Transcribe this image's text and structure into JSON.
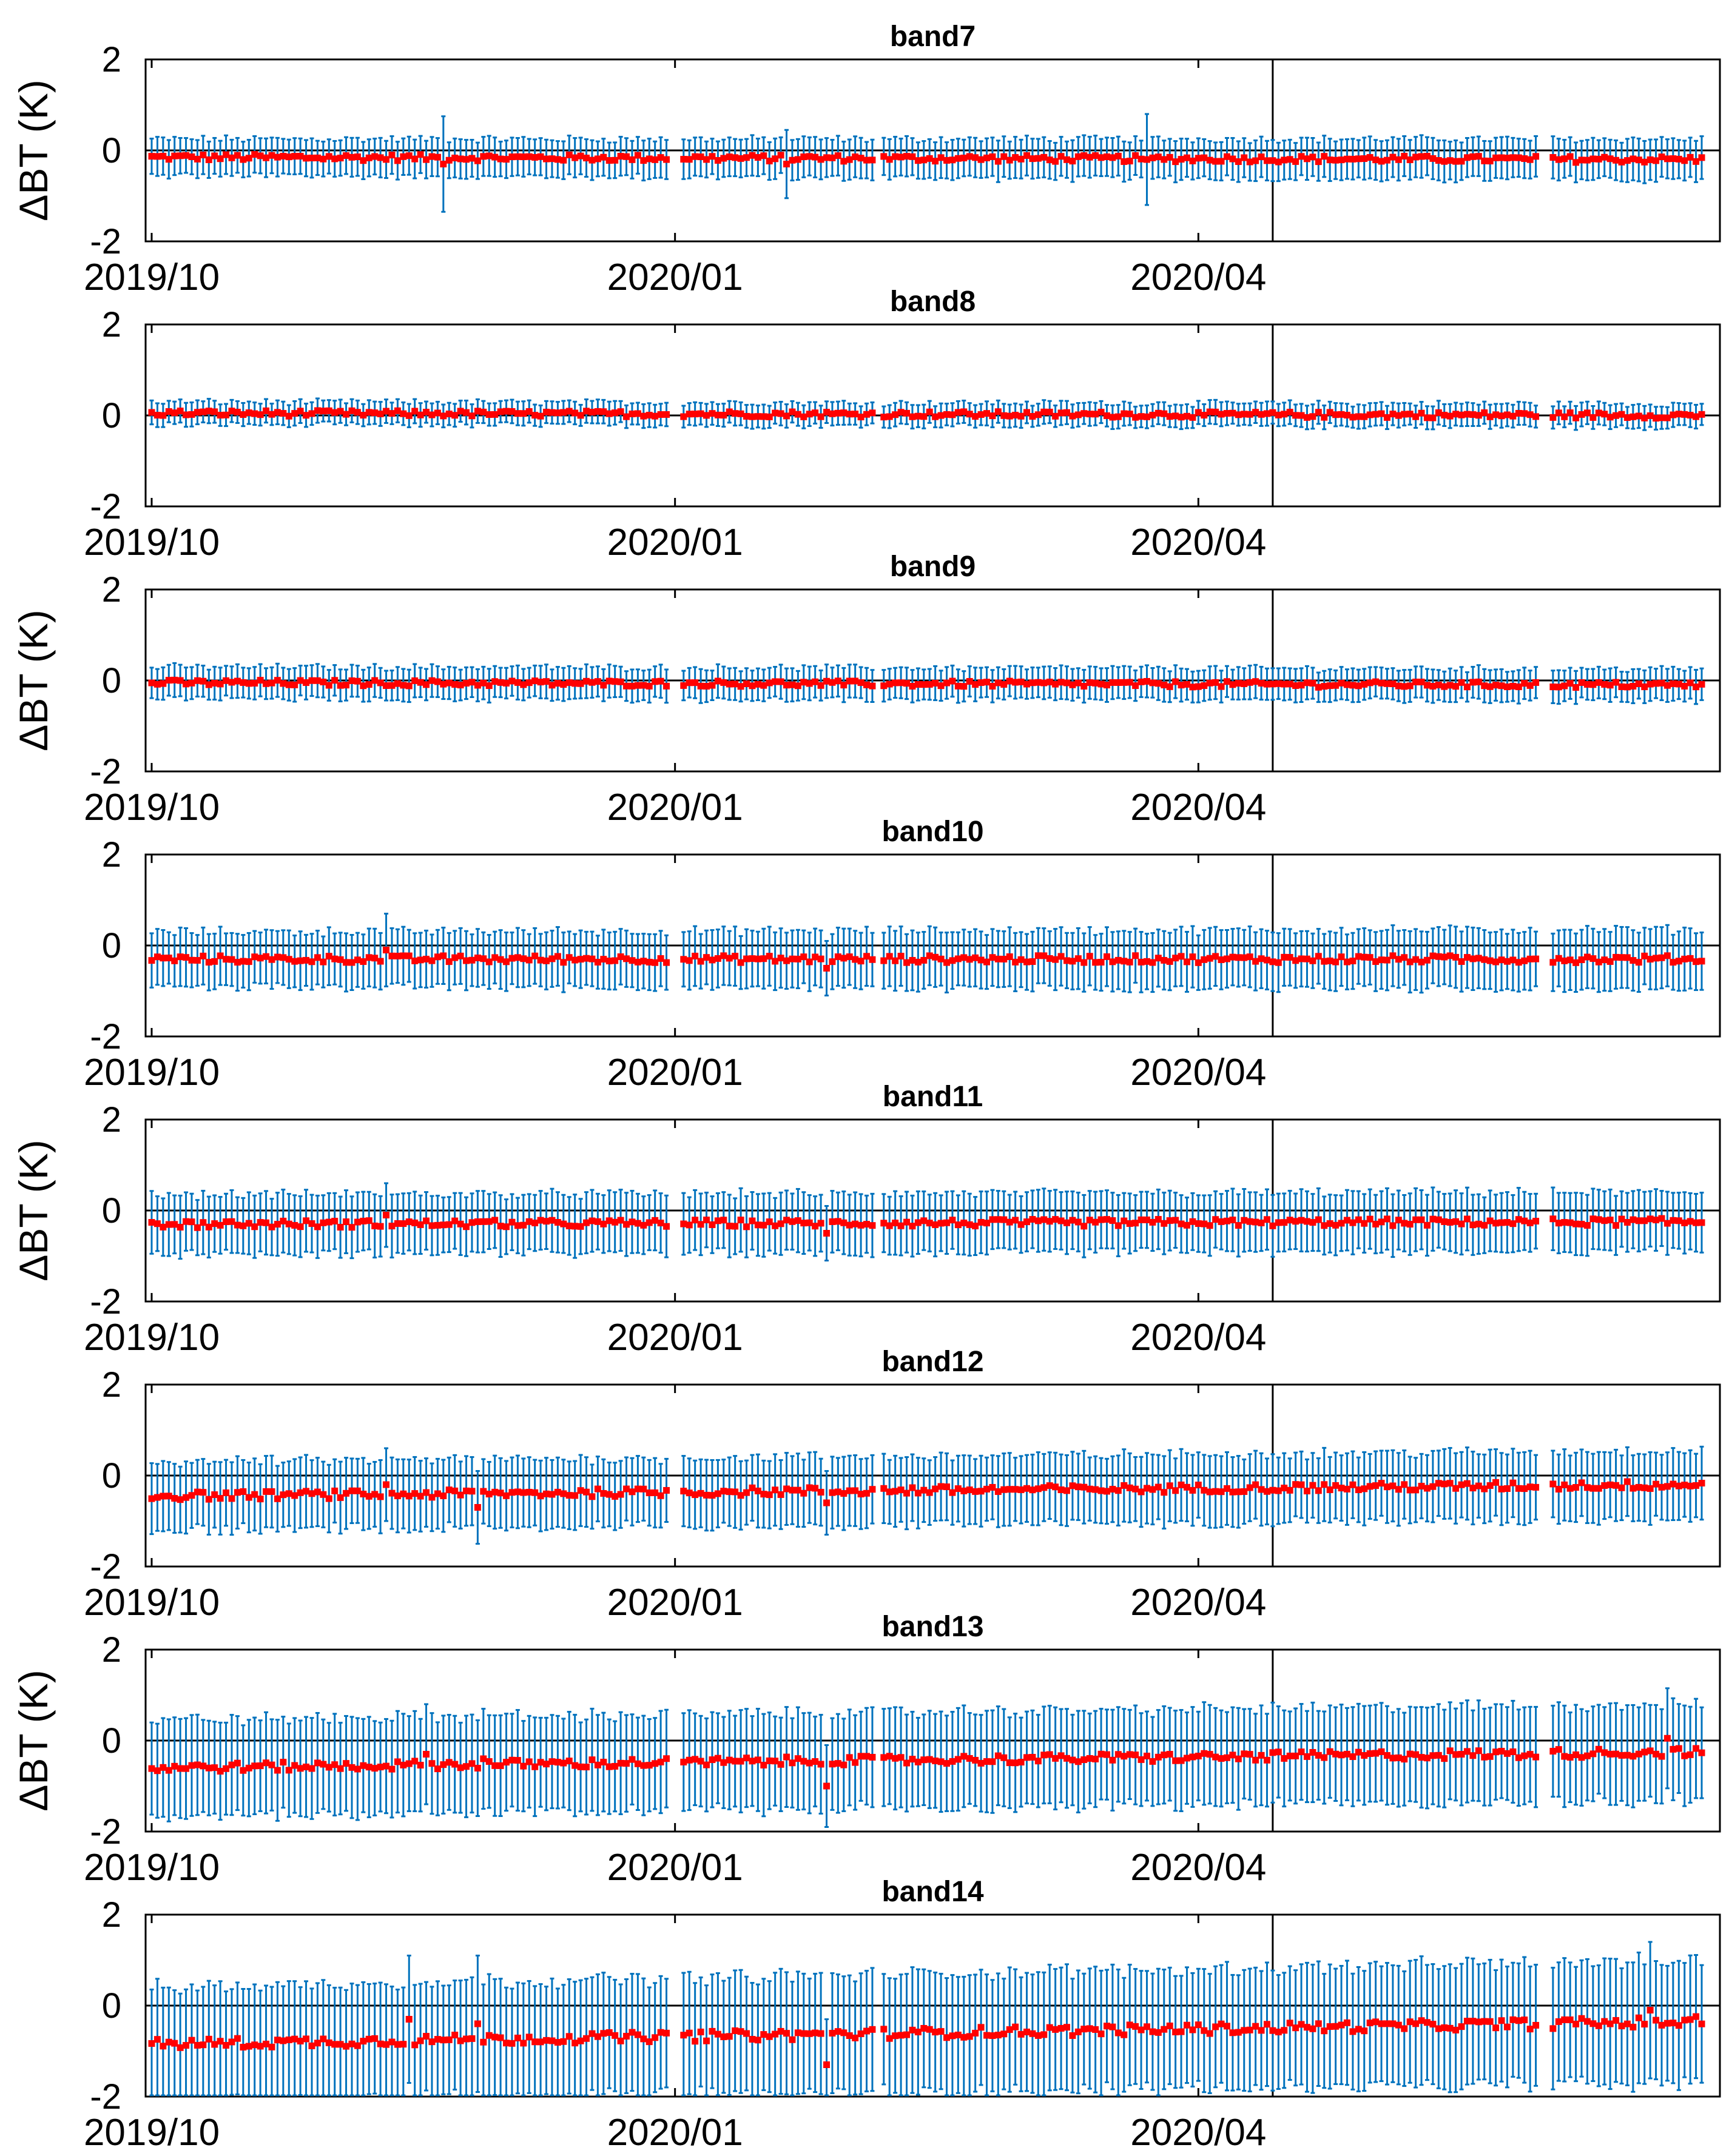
{
  "chart_data": {
    "type": "scatter",
    "description_type": "errorbar time series",
    "ylabel": "ΔBT (K)",
    "ylim": [
      -2,
      2
    ],
    "ytick_labels": [
      "2",
      "0",
      "-2"
    ],
    "xtick_labels": [
      "2019/10",
      "2020/01",
      "2020/04"
    ],
    "x_range_days": [
      0,
      271
    ],
    "vertical_line_day": 196,
    "gap_days": [
      91.5,
      127,
      243.5
    ],
    "colors": {
      "errorbar": "#0072BD",
      "marker": "#FF0000",
      "axes": "#000000"
    },
    "panels": [
      {
        "title": "band7",
        "ylabel_shown": true,
        "bias_start": -0.15,
        "bias_end": -0.2,
        "err_start": 0.4,
        "err_end": 0.45,
        "outliers": [
          {
            "day": 51,
            "value": -0.3,
            "err": 1.05
          },
          {
            "day": 111,
            "value": -0.3,
            "err": 0.75
          },
          {
            "day": 174,
            "value": -0.2,
            "err": 1.0
          }
        ]
      },
      {
        "title": "band8",
        "ylabel_shown": false,
        "bias_start": 0.05,
        "bias_end": 0.0,
        "err_start": 0.25,
        "err_end": 0.25,
        "outliers": []
      },
      {
        "title": "band9",
        "ylabel_shown": true,
        "bias_start": -0.05,
        "bias_end": -0.1,
        "err_start": 0.35,
        "err_end": 0.35,
        "outliers": []
      },
      {
        "title": "band10",
        "ylabel_shown": false,
        "bias_start": -0.3,
        "bias_end": -0.3,
        "err_start": 0.6,
        "err_end": 0.65,
        "outliers": [
          {
            "day": 41,
            "value": -0.1,
            "err": 0.8
          },
          {
            "day": 118,
            "value": -0.5,
            "err": 0.6
          }
        ]
      },
      {
        "title": "band11",
        "ylabel_shown": true,
        "bias_start": -0.3,
        "bias_end": -0.25,
        "err_start": 0.65,
        "err_end": 0.65,
        "outliers": [
          {
            "day": 41,
            "value": -0.1,
            "err": 0.7
          },
          {
            "day": 118,
            "value": -0.5,
            "err": 0.6
          }
        ]
      },
      {
        "title": "band12",
        "ylabel_shown": false,
        "bias_start": -0.45,
        "bias_end": -0.2,
        "err_start": 0.75,
        "err_end": 0.75,
        "outliers": [
          {
            "day": 41,
            "value": -0.2,
            "err": 0.8
          },
          {
            "day": 57,
            "value": -0.7,
            "err": 0.8
          },
          {
            "day": 118,
            "value": -0.6,
            "err": 0.7
          }
        ]
      },
      {
        "title": "band13",
        "ylabel_shown": true,
        "bias_start": -0.6,
        "bias_end": -0.25,
        "err_start": 1.05,
        "err_end": 1.05,
        "outliers": [
          {
            "day": 48,
            "value": -0.3,
            "err": 1.1
          },
          {
            "day": 58,
            "value": -0.4,
            "err": 1.1
          },
          {
            "day": 118,
            "value": -1.0,
            "err": 0.9
          },
          {
            "day": 265,
            "value": 0.05,
            "err": 1.1
          }
        ]
      },
      {
        "title": "band14",
        "ylabel_shown": false,
        "bias_start": -0.85,
        "bias_end": -0.35,
        "err_start": 1.25,
        "err_end": 1.35,
        "outliers": [
          {
            "day": 45,
            "value": -0.3,
            "err": 1.4
          },
          {
            "day": 57,
            "value": -0.4,
            "err": 1.5
          },
          {
            "day": 118,
            "value": -1.3,
            "err": 1.0
          },
          {
            "day": 262,
            "value": -0.1,
            "err": 1.5
          }
        ]
      }
    ]
  }
}
